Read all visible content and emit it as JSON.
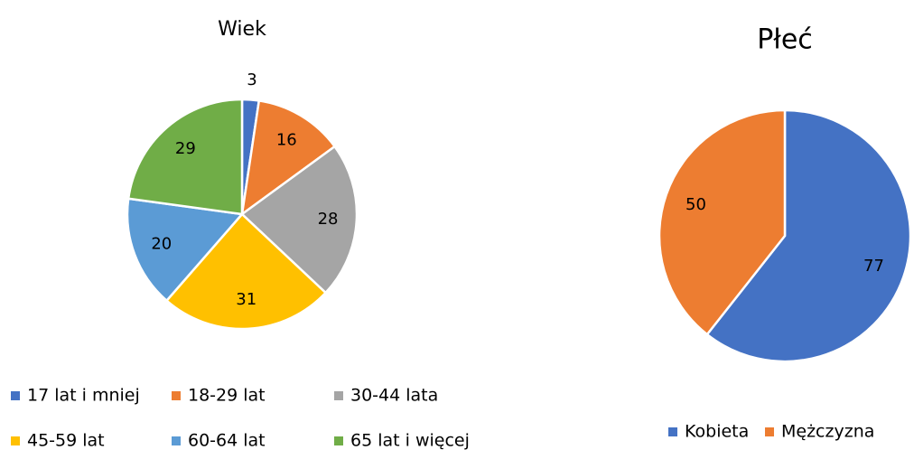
{
  "chart_data": [
    {
      "type": "pie",
      "title": "Wiek",
      "categories": [
        "17 lat i mniej",
        "18-29 lat",
        "30-44 lata",
        "45-59 lat",
        "60-64 lat",
        "65 lat i więcej"
      ],
      "values": [
        3,
        16,
        28,
        31,
        20,
        29
      ],
      "colors": [
        "#4472c4",
        "#ed7d31",
        "#a5a5a5",
        "#ffc000",
        "#5b9bd5",
        "#70ad47"
      ],
      "legend": "bottom"
    },
    {
      "type": "pie",
      "title": "Płeć",
      "categories": [
        "Kobieta",
        "Mężczyzna"
      ],
      "values": [
        77,
        50
      ],
      "colors": [
        "#4472c4",
        "#ed7d31"
      ],
      "legend": "bottom"
    }
  ]
}
